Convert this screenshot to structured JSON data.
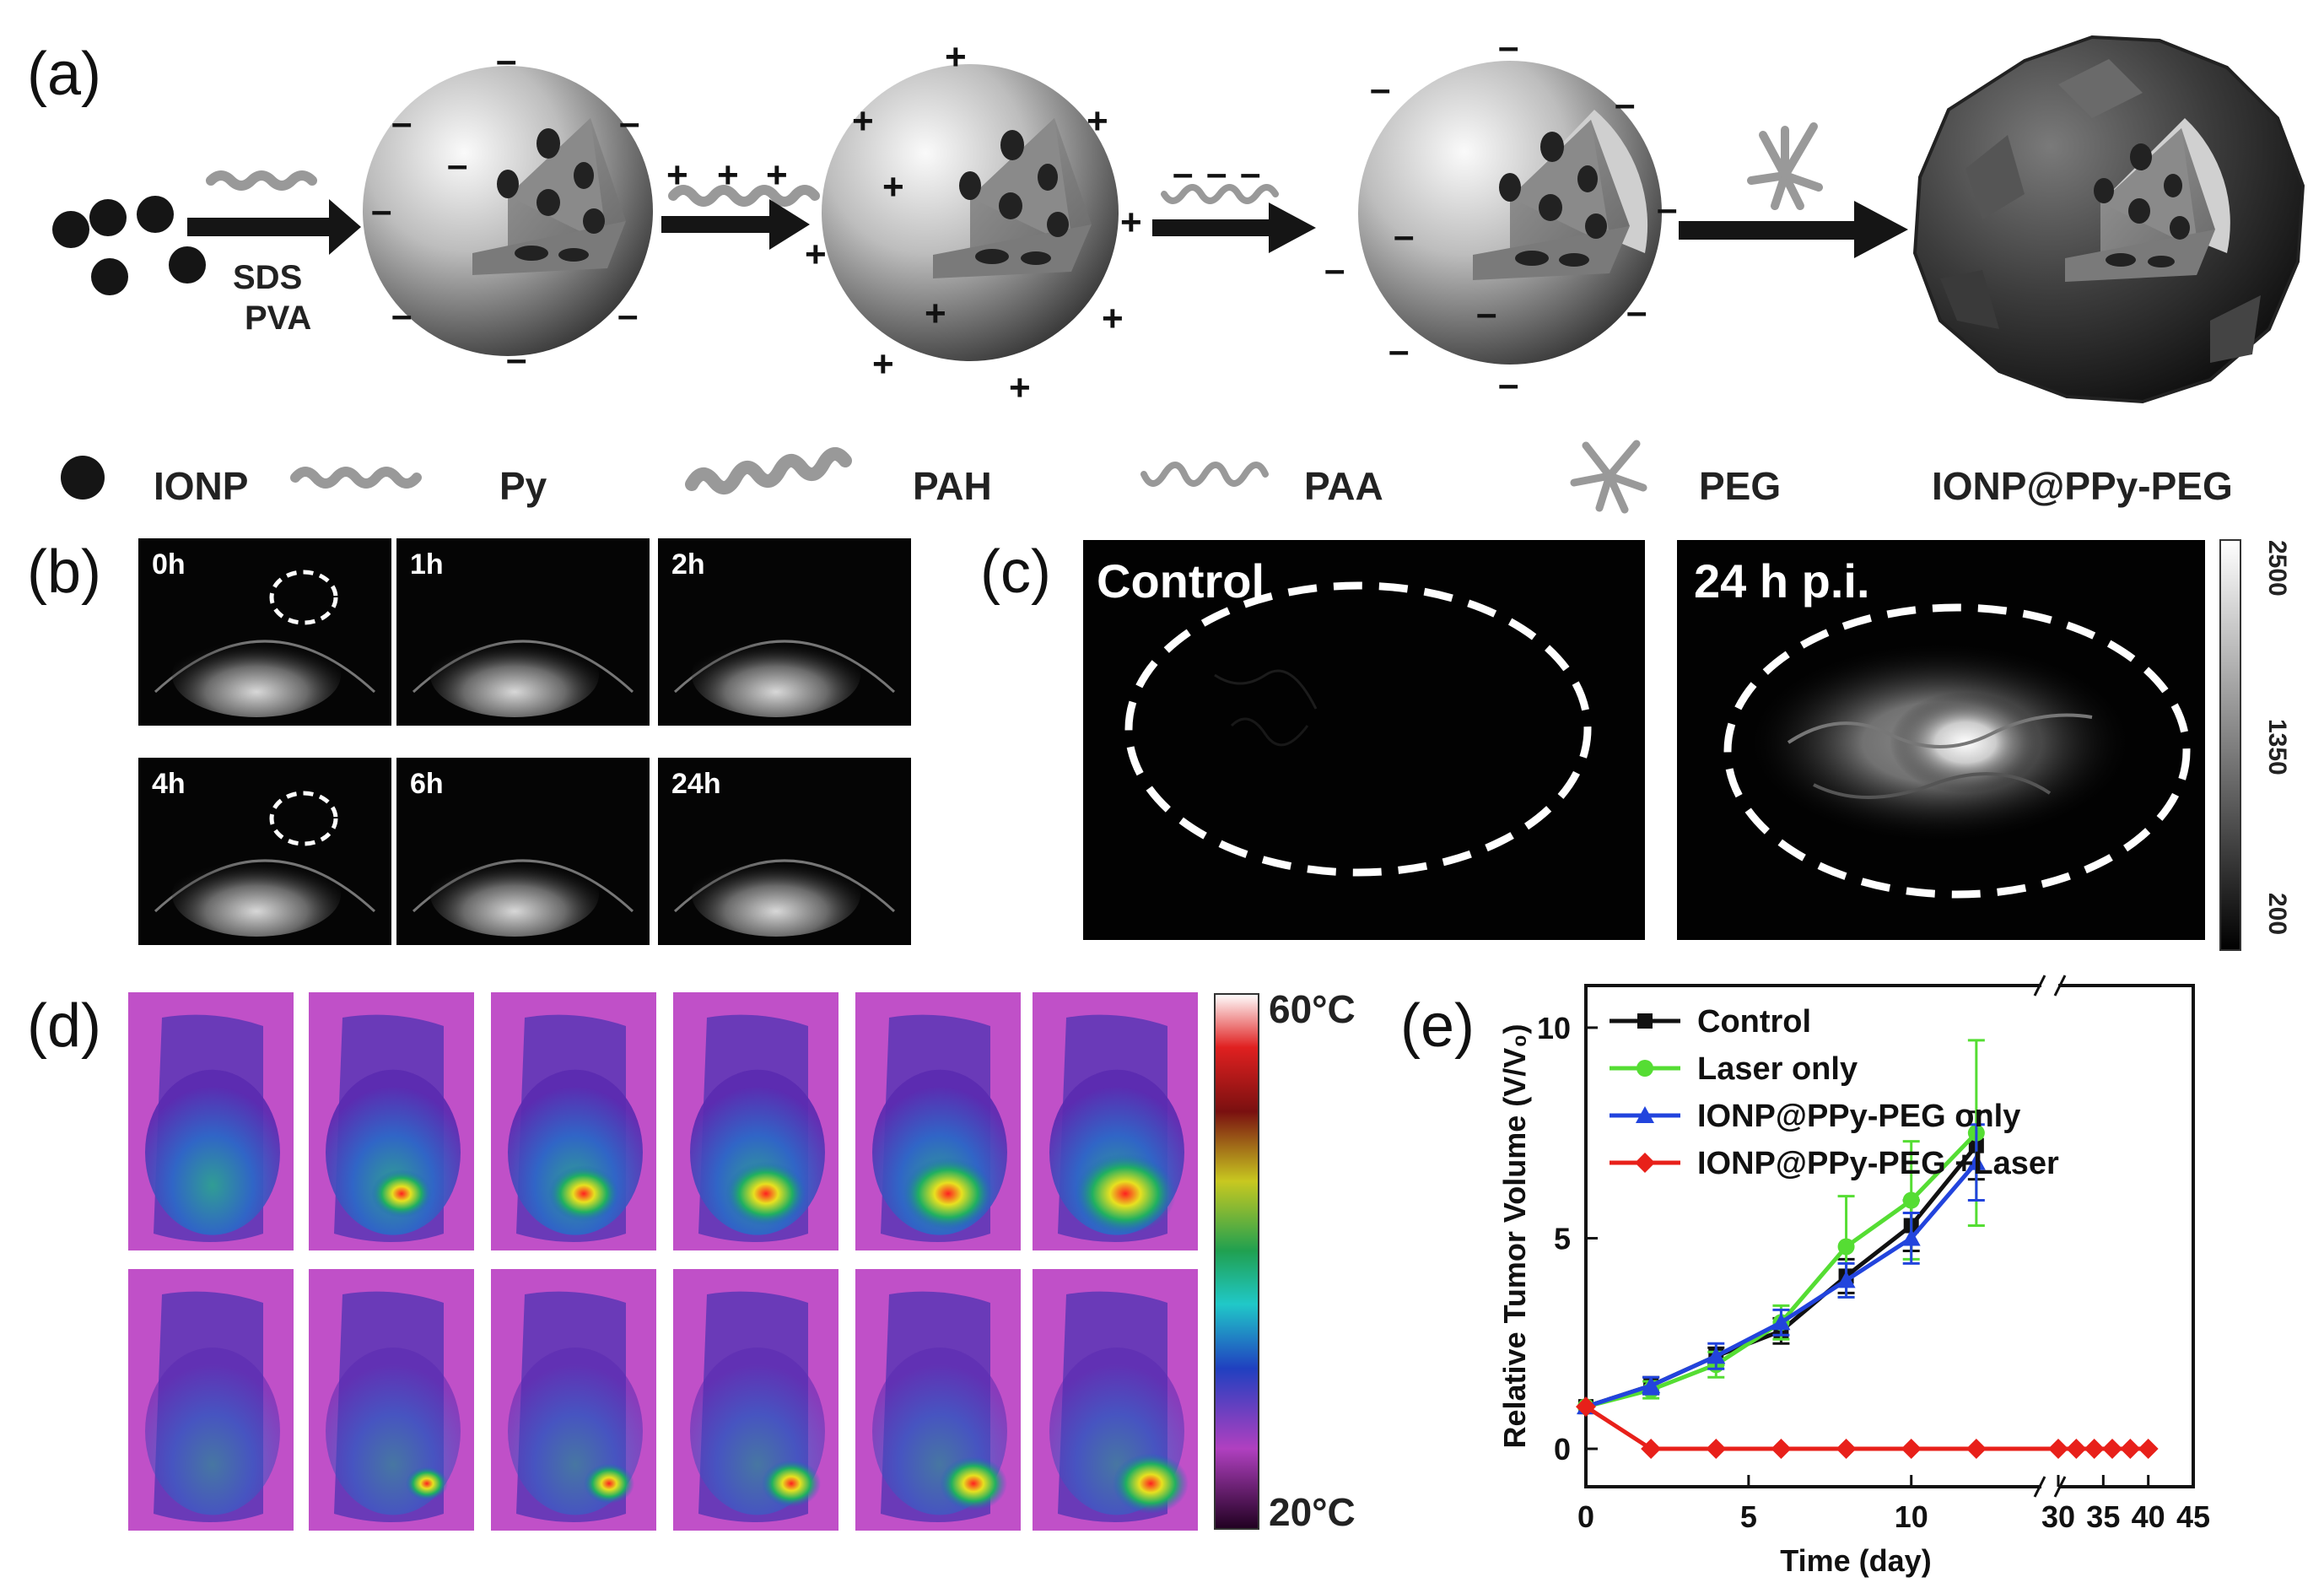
{
  "panels": {
    "a": "(a)",
    "b": "(b)",
    "c": "(c)",
    "d": "(d)",
    "e": "(e)"
  },
  "scheme": {
    "step1_label_1": "SDS",
    "step1_label_2": "PVA",
    "charges": {
      "positive": "+",
      "negative": "–"
    }
  },
  "legend": {
    "ionp": "IONP",
    "py": "Py",
    "pah": "PAH",
    "paa": "PAA",
    "peg": "PEG",
    "product": "IONP@PPy-PEG"
  },
  "mri": {
    "times": [
      "0h",
      "1h",
      "2h",
      "4h",
      "6h",
      "24h"
    ]
  },
  "photoacoustic": {
    "left_title": "Control",
    "right_title": "24 h p.i.",
    "scale_ticks": [
      "2500",
      "1350",
      "200"
    ]
  },
  "thermal": {
    "max_label": "60°C",
    "min_label": "20°C"
  },
  "chart_data": {
    "type": "line",
    "xlabel": "Time (day)",
    "ylabel": "Relative Tumor Volume (V/V₀)",
    "ylim": [
      -0.5,
      11
    ],
    "yticks": [
      0,
      5,
      10
    ],
    "xticks_left": [
      0,
      5,
      10
    ],
    "xticks_right": [
      30,
      35,
      40,
      45
    ],
    "x_break": true,
    "legend_position": "top-left",
    "series": [
      {
        "name": "Control",
        "color": "#111111",
        "marker": "square",
        "x": [
          0,
          2,
          4,
          6,
          8,
          10,
          12
        ],
        "values": [
          1.0,
          1.5,
          2.2,
          2.8,
          4.1,
          5.3,
          7.2
        ],
        "errors": [
          0,
          0.2,
          0.2,
          0.3,
          0.4,
          0.6,
          0.8
        ]
      },
      {
        "name": "Laser only",
        "color": "#55dd33",
        "marker": "circle",
        "x": [
          0,
          2,
          4,
          6,
          8,
          10,
          12
        ],
        "values": [
          1.0,
          1.4,
          2.0,
          3.0,
          4.8,
          5.9,
          7.5
        ],
        "errors": [
          0,
          0.2,
          0.3,
          0.4,
          1.2,
          1.4,
          2.2
        ]
      },
      {
        "name": "IONP@PPy-PEG only",
        "color": "#2244dd",
        "marker": "triangle",
        "x": [
          0,
          2,
          4,
          6,
          8,
          10,
          12
        ],
        "values": [
          1.0,
          1.5,
          2.2,
          3.0,
          4.0,
          5.0,
          6.8
        ],
        "errors": [
          0,
          0.2,
          0.3,
          0.3,
          0.4,
          0.6,
          0.9
        ]
      },
      {
        "name": "IONP@PPy-PEG +Laser",
        "color": "#e8201a",
        "marker": "diamond",
        "x": [
          0,
          2,
          4,
          6,
          8,
          10,
          12,
          30,
          32,
          34,
          36,
          38,
          40
        ],
        "values": [
          1.0,
          0.0,
          0.0,
          0.0,
          0.0,
          0.0,
          0.0,
          0.0,
          0.0,
          0.0,
          0.0,
          0.0,
          0.0
        ],
        "errors": [
          0,
          0,
          0,
          0,
          0,
          0,
          0,
          0,
          0,
          0,
          0,
          0,
          0
        ]
      }
    ]
  }
}
